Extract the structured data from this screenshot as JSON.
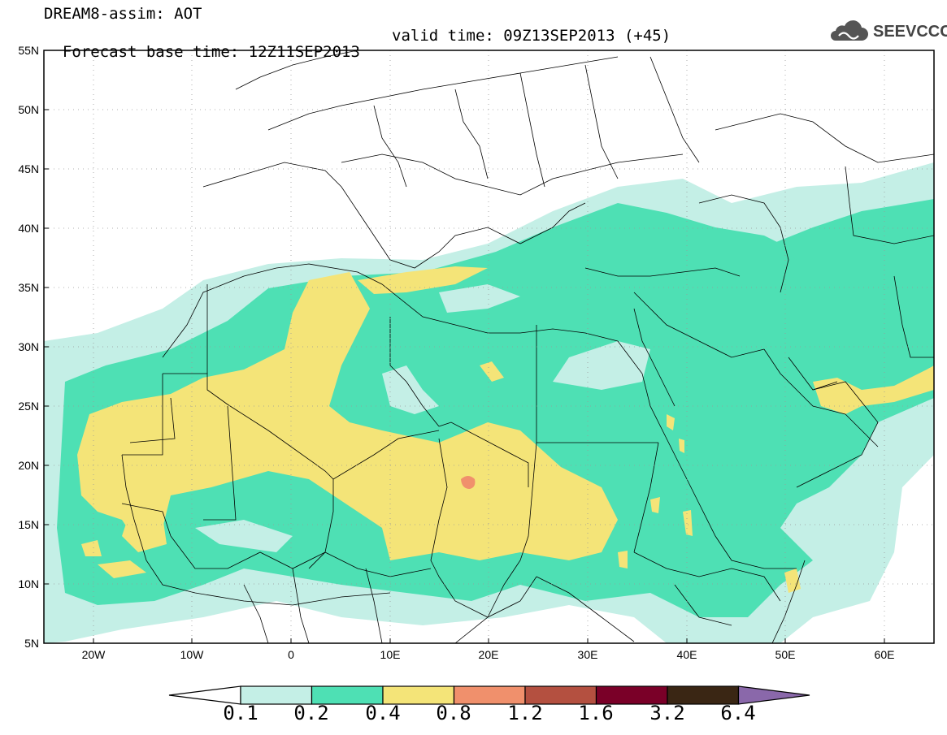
{
  "header": {
    "line1": "DREAM8-assim: AOT",
    "base_time": "Forecast base time: 12Z11SEP2013",
    "valid_time": "valid time: 09Z13SEP2013 (+45)"
  },
  "logo": {
    "text": "SEEVCCC",
    "icon": "cloud-icon"
  },
  "map": {
    "lat_range": [
      5,
      55
    ],
    "lon_range": [
      -25,
      65
    ],
    "lat_ticks": [
      "55N",
      "50N",
      "45N",
      "40N",
      "35N",
      "30N",
      "25N",
      "20N",
      "15N",
      "10N",
      "5N"
    ],
    "lon_ticks": [
      "20W",
      "10W",
      "0",
      "10E",
      "20E",
      "30E",
      "40E",
      "50E",
      "60E"
    ],
    "grid": "dotted"
  },
  "colorbar": {
    "labels": [
      "0.1",
      "0.2",
      "0.4",
      "0.8",
      "1.2",
      "1.6",
      "3.2",
      "6.4"
    ],
    "colors": [
      "#ffffff",
      "#c4efe6",
      "#4ee0b4",
      "#f4e478",
      "#f0906c",
      "#b45040",
      "#7a0028",
      "#3a2614",
      "#8a68aa"
    ]
  },
  "fields": {
    "levels": {
      "light": "#c4efe6",
      "green": "#4ee0b4",
      "yellow": "#f4e478",
      "orange": "#f0906c"
    }
  }
}
